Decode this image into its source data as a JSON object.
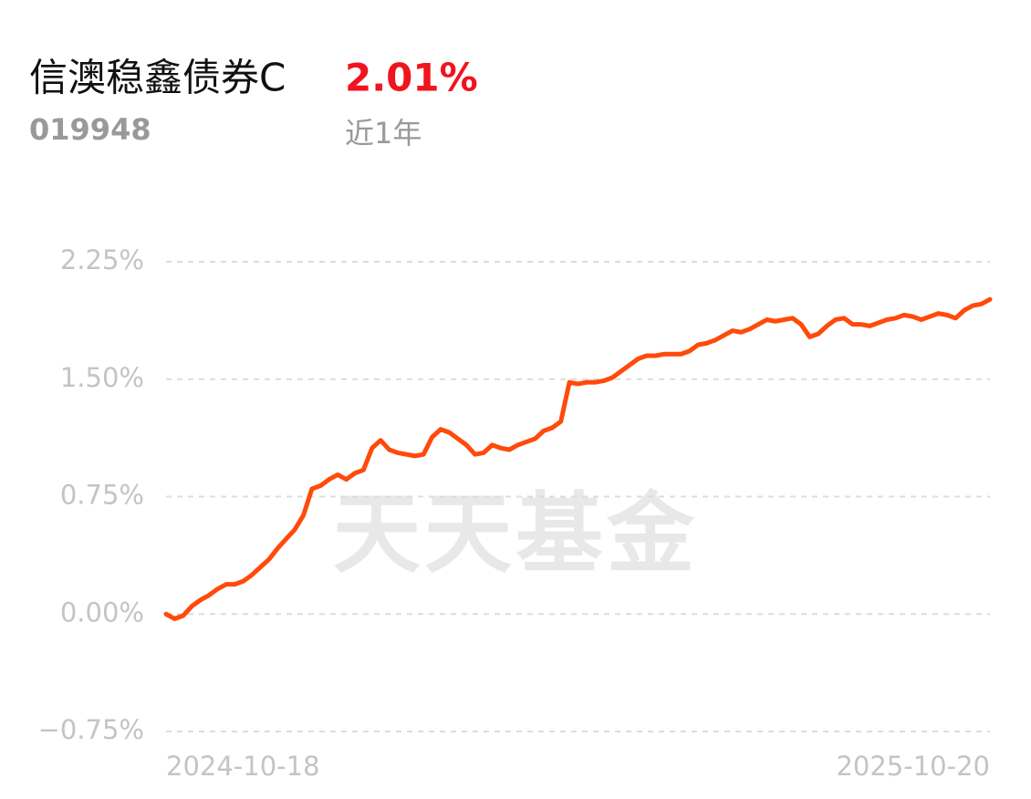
{
  "chart_data": {
    "type": "line",
    "title": "信澳稳鑫债券C",
    "code": "019948",
    "change": "2.01%",
    "period": "近1年",
    "watermark": "天天基金",
    "categories": [
      "2024-10-18",
      null,
      null,
      null,
      null,
      null,
      null,
      null,
      null,
      null,
      null,
      null,
      null,
      null,
      null,
      null,
      null,
      null,
      null,
      null,
      null,
      null,
      null,
      null,
      null,
      null,
      null,
      null,
      null,
      null,
      null,
      null,
      null,
      null,
      null,
      null,
      null,
      null,
      null,
      null,
      null,
      null,
      null,
      null,
      null,
      null,
      null,
      null,
      null,
      null,
      null,
      null,
      null,
      null,
      null,
      null,
      null,
      null,
      null,
      null,
      null,
      null,
      null,
      null,
      null,
      null,
      null,
      null,
      null,
      null,
      null,
      null,
      null,
      null,
      null,
      null,
      null,
      null,
      null,
      null,
      null,
      null,
      null,
      null,
      null,
      null,
      null,
      null,
      null,
      null,
      null,
      null,
      null,
      null,
      null,
      null,
      "2025-10-20"
    ],
    "series": [
      {
        "color": "#ff4a0a",
        "values": [
          0.0,
          -0.03,
          -0.01,
          0.05,
          0.09,
          0.12,
          0.16,
          0.19,
          0.19,
          0.21,
          0.25,
          0.3,
          0.35,
          0.42,
          0.48,
          0.54,
          0.63,
          0.8,
          0.82,
          0.86,
          0.89,
          0.86,
          0.9,
          0.92,
          1.06,
          1.11,
          1.05,
          1.03,
          1.02,
          1.01,
          1.02,
          1.13,
          1.18,
          1.16,
          1.12,
          1.08,
          1.02,
          1.03,
          1.08,
          1.06,
          1.05,
          1.08,
          1.1,
          1.12,
          1.17,
          1.19,
          1.23,
          1.48,
          1.47,
          1.48,
          1.48,
          1.49,
          1.51,
          1.55,
          1.59,
          1.63,
          1.65,
          1.65,
          1.66,
          1.66,
          1.66,
          1.68,
          1.72,
          1.73,
          1.75,
          1.78,
          1.81,
          1.8,
          1.82,
          1.85,
          1.88,
          1.87,
          1.88,
          1.89,
          1.85,
          1.77,
          1.79,
          1.84,
          1.88,
          1.89,
          1.85,
          1.85,
          1.84,
          1.86,
          1.88,
          1.89,
          1.91,
          1.9,
          1.88,
          1.9,
          1.92,
          1.91,
          1.89,
          1.94,
          1.97,
          1.98,
          2.01
        ]
      }
    ],
    "ylim": [
      -0.75,
      2.25
    ],
    "yticks": [
      {
        "value": 2.25,
        "label": "2.25%"
      },
      {
        "value": 1.5,
        "label": "1.50%"
      },
      {
        "value": 0.75,
        "label": "0.75%"
      },
      {
        "value": 0,
        "label": "0.00%"
      },
      {
        "value": -0.75,
        "label": "−0.75%"
      }
    ],
    "grid": true
  }
}
